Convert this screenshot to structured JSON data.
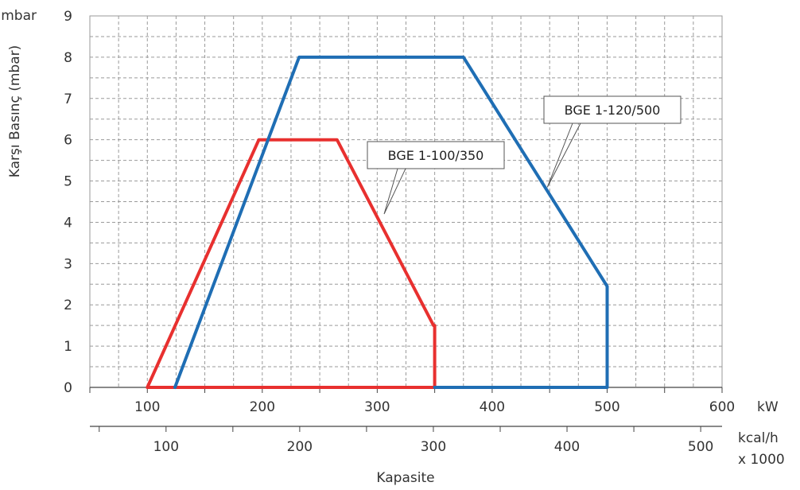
{
  "chart_data": {
    "type": "line",
    "ylabel": "Karşı Basınç (mbar)",
    "xlabel": "Kapasite",
    "y_unit": "mbar",
    "x_unit": "kW",
    "x2_unit": "kcal/h",
    "x2_unit_multiplier": "x 1000",
    "xlim": [
      50,
      600
    ],
    "ylim": [
      0,
      9
    ],
    "x_ticks": [
      "100",
      "200",
      "300",
      "400",
      "500",
      "600"
    ],
    "y_ticks": [
      "0",
      "1",
      "2",
      "3",
      "4",
      "5",
      "6",
      "7",
      "8",
      "9"
    ],
    "x2_ticks": [
      "100",
      "200",
      "300",
      "400",
      "500"
    ],
    "grid": true,
    "series": [
      {
        "name": "BGE 1-100/350",
        "color": "#e8302f",
        "x": [
          100,
          197,
          265,
          349,
          350,
          350,
          100
        ],
        "y": [
          0,
          6,
          6,
          1.5,
          1.5,
          0,
          0
        ]
      },
      {
        "name": "BGE 1-120/500",
        "color": "#1f6eb4",
        "x": [
          124,
          232,
          375,
          500,
          500,
          350
        ],
        "y": [
          0,
          8,
          8,
          2.45,
          0,
          0
        ]
      }
    ]
  }
}
